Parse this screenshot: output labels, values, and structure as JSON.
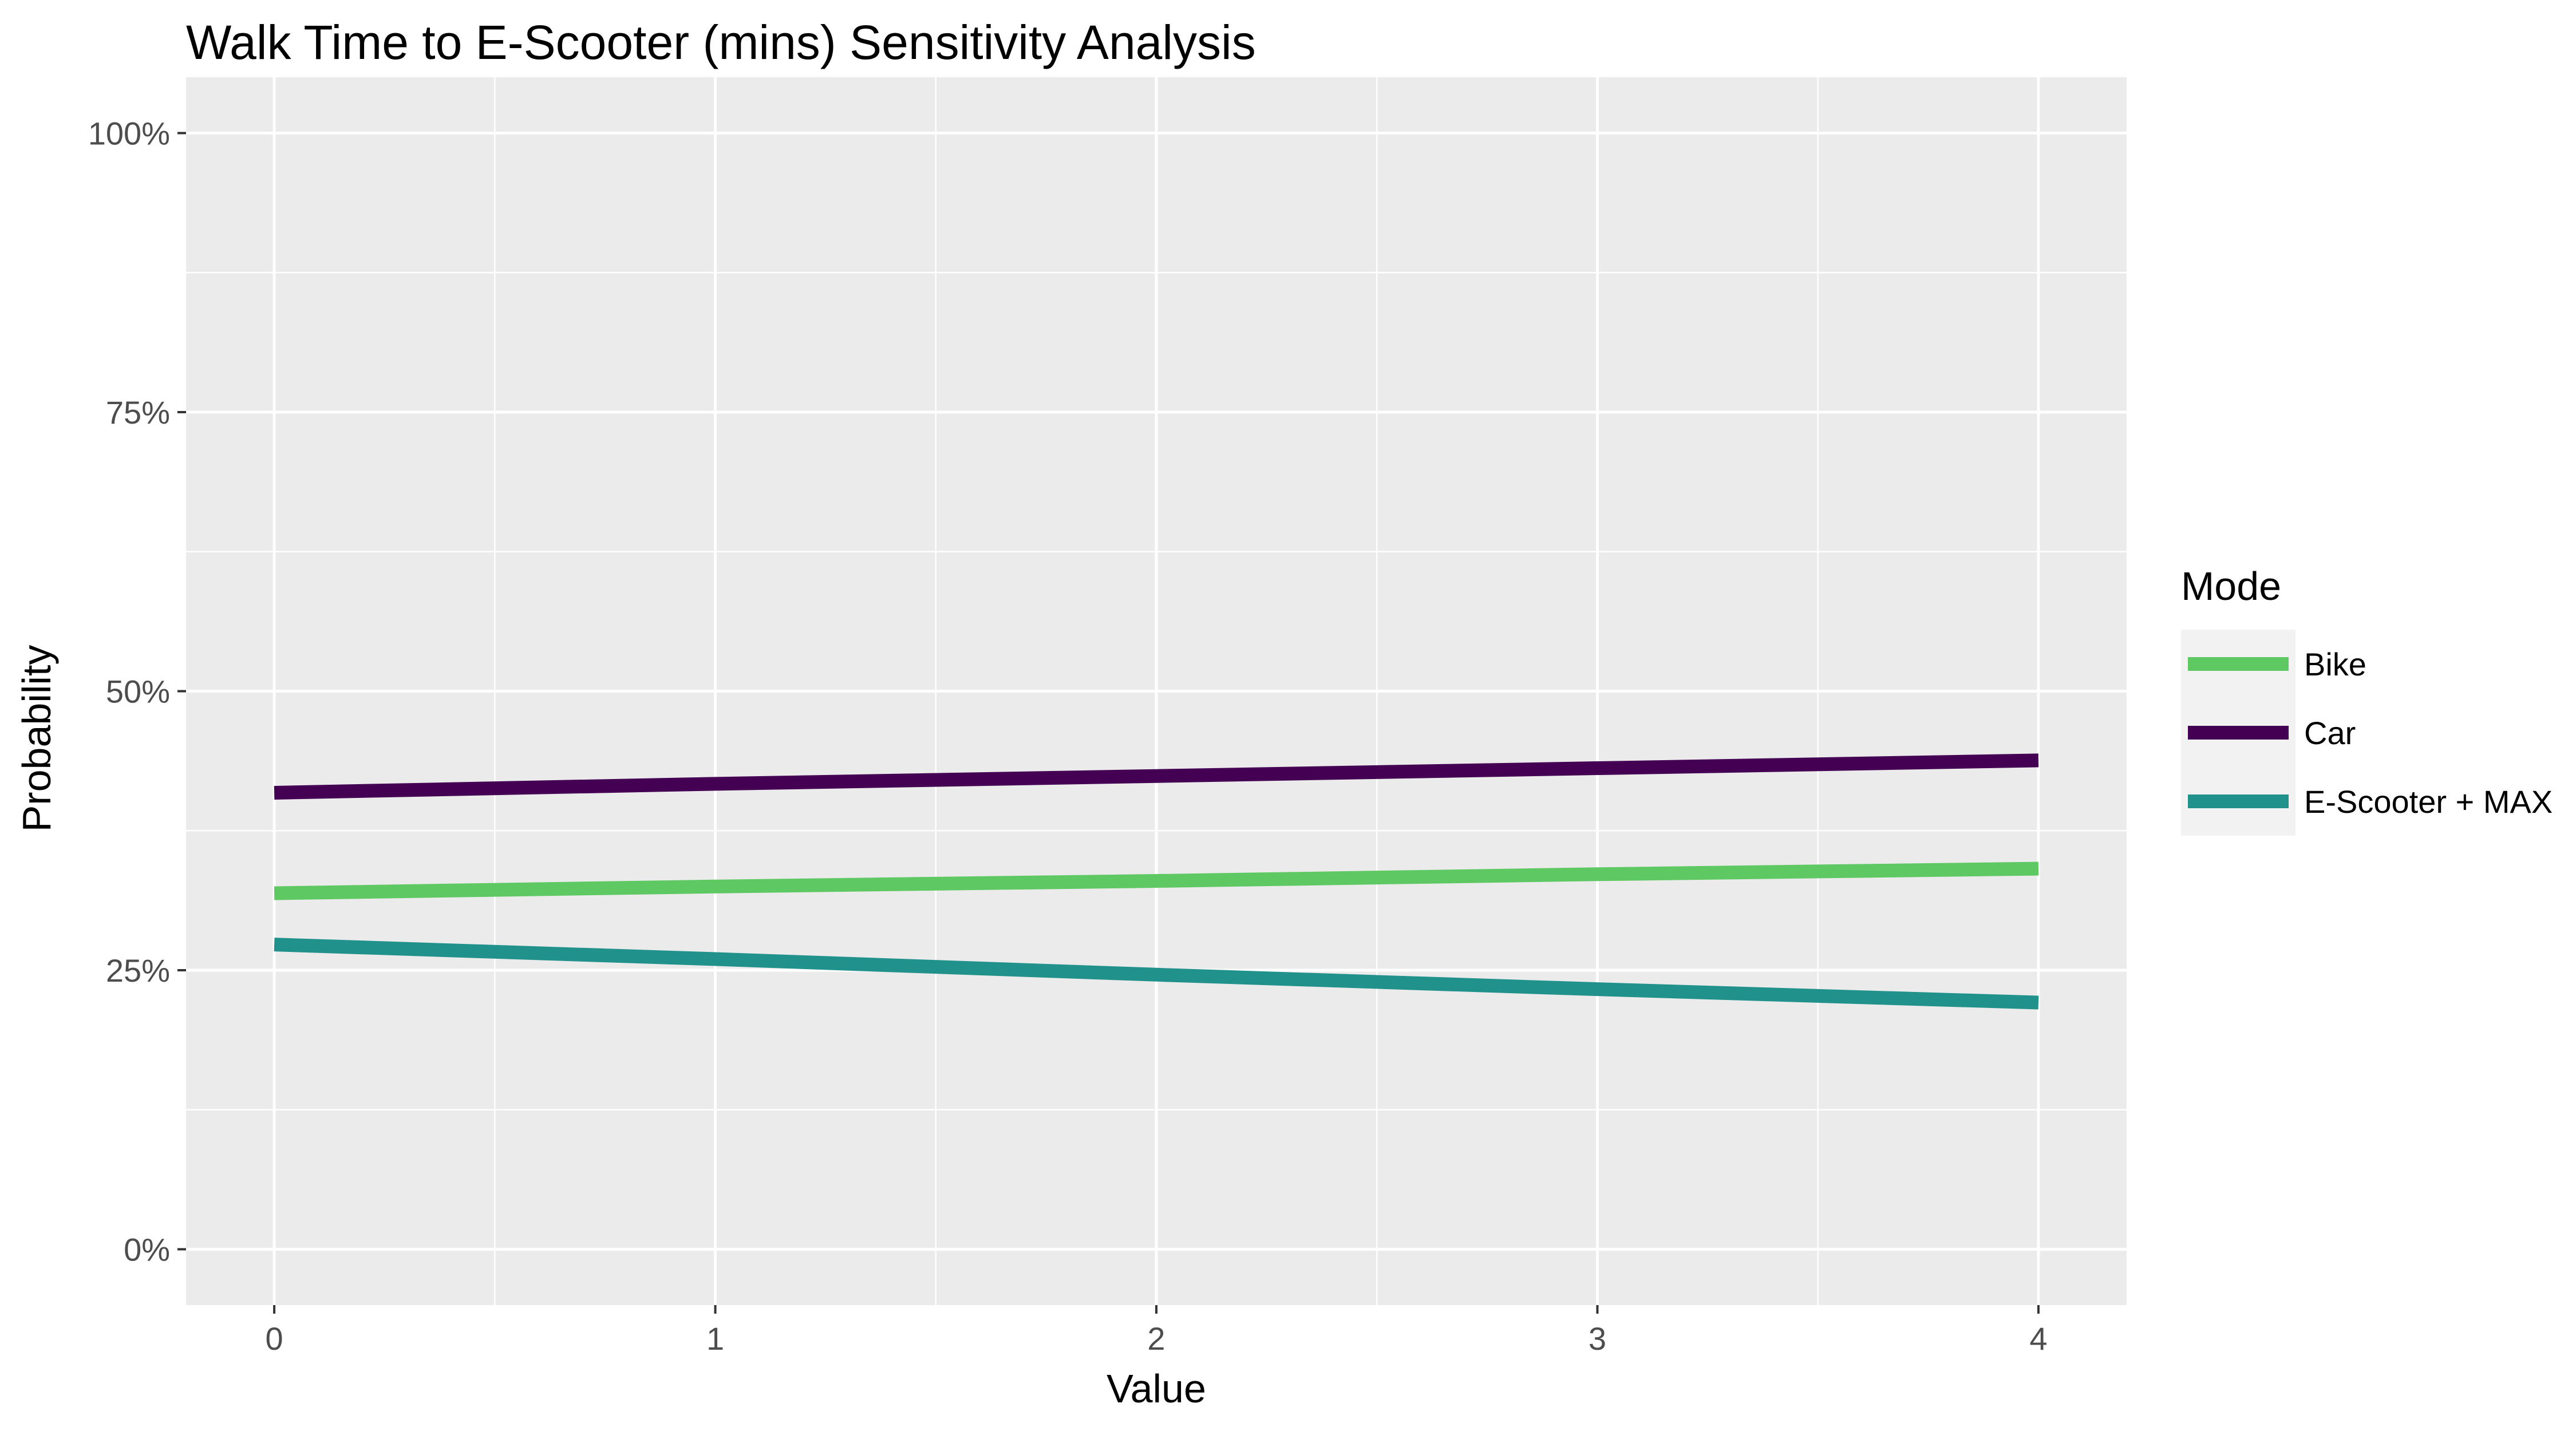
{
  "chart_data": {
    "type": "line",
    "title": "Walk Time to E-Scooter (mins) Sensitivity Analysis",
    "xlabel": "Value",
    "ylabel": "Probability",
    "x": [
      0,
      1,
      2,
      3,
      4
    ],
    "x_ticks": [
      "0",
      "1",
      "2",
      "3",
      "4"
    ],
    "y_ticks": [
      "0%",
      "25%",
      "50%",
      "75%",
      "100%"
    ],
    "xlim": [
      -0.2,
      4.2
    ],
    "ylim": [
      -0.05,
      1.05
    ],
    "grid": true,
    "legend": {
      "title": "Mode",
      "position": "right"
    },
    "series": [
      {
        "name": "Bike",
        "color": "#5ec962",
        "values": [
          0.319,
          0.325,
          0.33,
          0.336,
          0.341
        ]
      },
      {
        "name": "Car",
        "color": "#440154",
        "values": [
          0.409,
          0.417,
          0.424,
          0.431,
          0.438
        ]
      },
      {
        "name": "E-Scooter + MAX",
        "color": "#21918c",
        "values": [
          0.273,
          0.26,
          0.246,
          0.233,
          0.221
        ]
      }
    ]
  }
}
